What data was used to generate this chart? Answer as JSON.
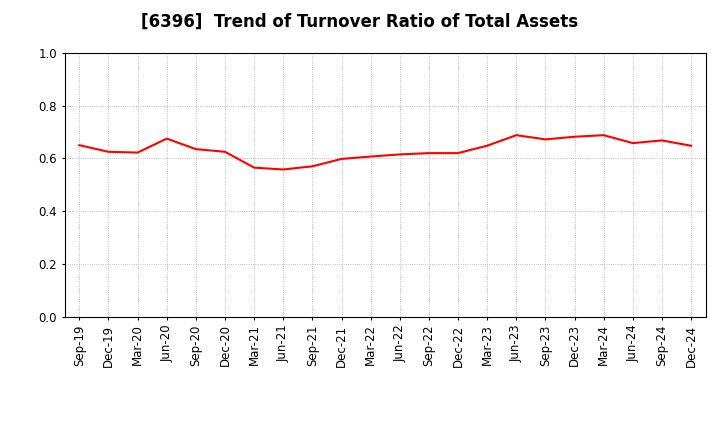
{
  "title": "[6396]  Trend of Turnover Ratio of Total Assets",
  "x_labels": [
    "Sep-19",
    "Dec-19",
    "Mar-20",
    "Jun-20",
    "Sep-20",
    "Dec-20",
    "Mar-21",
    "Jun-21",
    "Sep-21",
    "Dec-21",
    "Mar-22",
    "Jun-22",
    "Sep-22",
    "Dec-22",
    "Mar-23",
    "Jun-23",
    "Sep-23",
    "Dec-23",
    "Mar-24",
    "Jun-24",
    "Sep-24",
    "Dec-24"
  ],
  "y_values": [
    0.65,
    0.625,
    0.622,
    0.675,
    0.635,
    0.625,
    0.565,
    0.558,
    0.57,
    0.598,
    0.607,
    0.615,
    0.62,
    0.62,
    0.648,
    0.688,
    0.672,
    0.682,
    0.688,
    0.658,
    0.668,
    0.648
  ],
  "line_color": "#FF0000",
  "line_width": 1.5,
  "ylim": [
    0.0,
    1.0
  ],
  "yticks": [
    0.0,
    0.2,
    0.4,
    0.6,
    0.8,
    1.0
  ],
  "background_color": "#FFFFFF",
  "grid_color": "#aaaaaa",
  "title_fontsize": 12,
  "tick_fontsize": 8.5
}
